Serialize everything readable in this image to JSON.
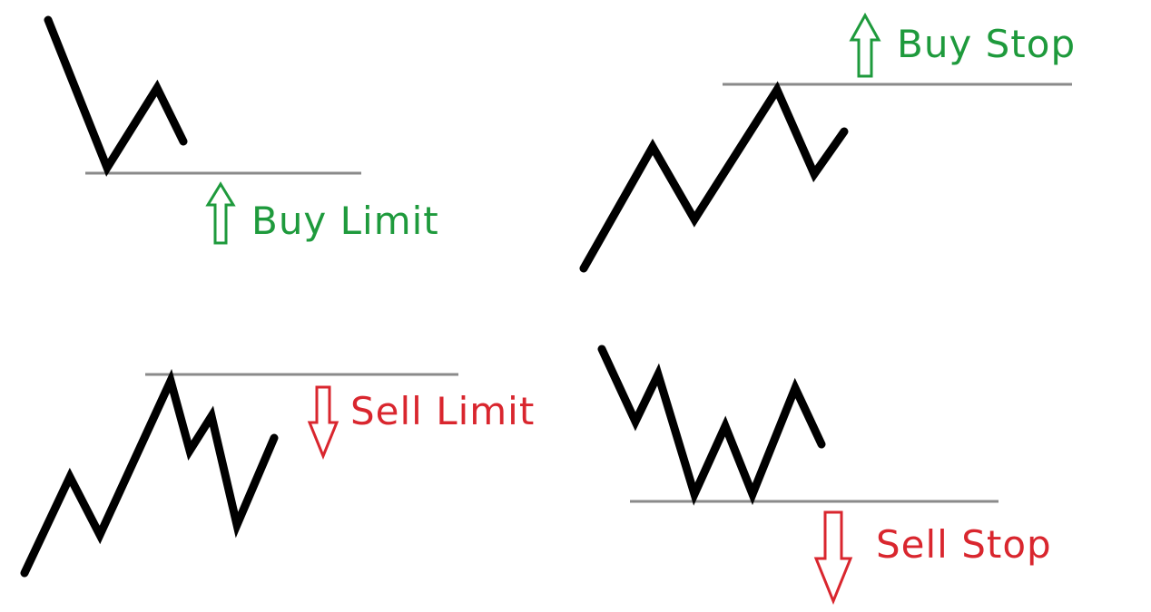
{
  "colors": {
    "buy": "#1e9a3c",
    "sell": "#d9262e",
    "price_line": "#000000",
    "level_line": "#808080"
  },
  "labels": {
    "buy_limit": "Buy Limit",
    "buy_stop": "Buy Stop",
    "sell_limit": "Sell Limit",
    "sell_stop": "Sell Stop"
  },
  "icons": {
    "buy_arrow": "up-arrow-outline-icon",
    "sell_arrow": "down-arrow-outline-icon"
  }
}
